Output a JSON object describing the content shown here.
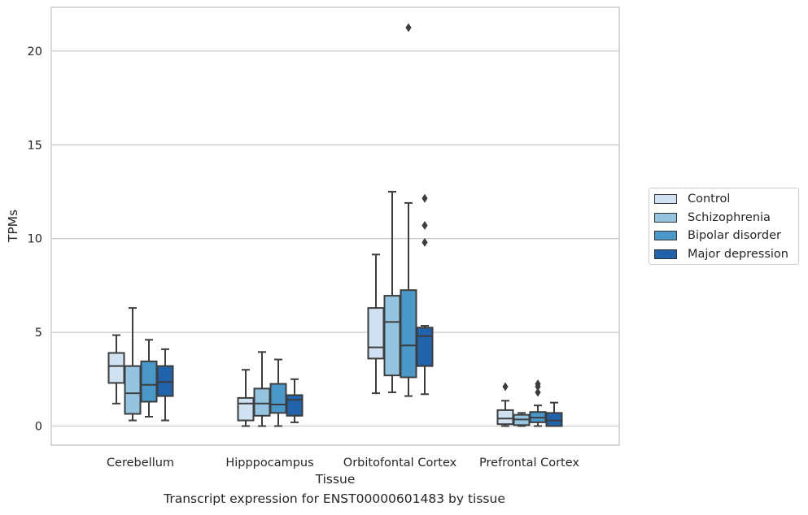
{
  "chart_data": {
    "type": "box",
    "caption": "Transcript expression for ENST00000601483 by tissue",
    "xlabel": "Tissue",
    "ylabel": "TPMs",
    "ylim": [
      -1,
      22.3
    ],
    "yticks": [
      0,
      5,
      10,
      15,
      20
    ],
    "grid": true,
    "legend_position": "right",
    "categories": [
      "Cerebellum",
      "Hipppocampus",
      "Orbitofontal Cortex",
      "Prefrontal Cortex"
    ],
    "series": [
      {
        "name": "Control",
        "color": "#d0e1f2",
        "boxes": [
          {
            "whislo": 1.2,
            "q1": 2.3,
            "med": 3.2,
            "q3": 3.9,
            "whishi": 4.85,
            "fliers": []
          },
          {
            "whislo": 0.0,
            "q1": 0.3,
            "med": 1.2,
            "q3": 1.5,
            "whishi": 3.0,
            "fliers": []
          },
          {
            "whislo": 1.75,
            "q1": 3.6,
            "med": 4.2,
            "q3": 6.3,
            "whishi": 9.15,
            "fliers": []
          },
          {
            "whislo": 0.0,
            "q1": 0.1,
            "med": 0.4,
            "q3": 0.85,
            "whishi": 1.35,
            "fliers": [
              2.1
            ]
          }
        ]
      },
      {
        "name": "Schizophrenia",
        "color": "#94c4df",
        "boxes": [
          {
            "whislo": 0.3,
            "q1": 0.65,
            "med": 1.75,
            "q3": 3.2,
            "whishi": 6.3,
            "fliers": []
          },
          {
            "whislo": 0.0,
            "q1": 0.55,
            "med": 1.2,
            "q3": 2.0,
            "whishi": 3.95,
            "fliers": []
          },
          {
            "whislo": 1.8,
            "q1": 2.7,
            "med": 5.55,
            "q3": 6.95,
            "whishi": 12.5,
            "fliers": []
          },
          {
            "whislo": 0.0,
            "q1": 0.05,
            "med": 0.35,
            "q3": 0.6,
            "whishi": 0.7,
            "fliers": []
          }
        ]
      },
      {
        "name": "Bipolar disorder",
        "color": "#4a98c9",
        "boxes": [
          {
            "whislo": 0.5,
            "q1": 1.3,
            "med": 2.2,
            "q3": 3.45,
            "whishi": 4.6,
            "fliers": []
          },
          {
            "whislo": 0.0,
            "q1": 0.7,
            "med": 1.15,
            "q3": 2.25,
            "whishi": 3.55,
            "fliers": []
          },
          {
            "whislo": 1.6,
            "q1": 2.6,
            "med": 4.3,
            "q3": 7.25,
            "whishi": 11.9,
            "fliers": [
              21.25
            ]
          },
          {
            "whislo": 0.0,
            "q1": 0.2,
            "med": 0.45,
            "q3": 0.75,
            "whishi": 1.1,
            "fliers": [
              1.8,
              2.1,
              2.25
            ]
          }
        ]
      },
      {
        "name": "Major depression",
        "color": "#2163aa",
        "boxes": [
          {
            "whislo": 0.3,
            "q1": 1.6,
            "med": 2.35,
            "q3": 3.2,
            "whishi": 4.1,
            "fliers": []
          },
          {
            "whislo": 0.2,
            "q1": 0.55,
            "med": 1.4,
            "q3": 1.65,
            "whishi": 2.5,
            "fliers": []
          },
          {
            "whislo": 1.7,
            "q1": 3.2,
            "med": 4.8,
            "q3": 5.25,
            "whishi": 5.35,
            "fliers": [
              9.8,
              10.7,
              12.15
            ]
          },
          {
            "whislo": 0.0,
            "q1": 0.0,
            "med": 0.3,
            "q3": 0.7,
            "whishi": 1.25,
            "fliers": []
          }
        ]
      }
    ]
  }
}
